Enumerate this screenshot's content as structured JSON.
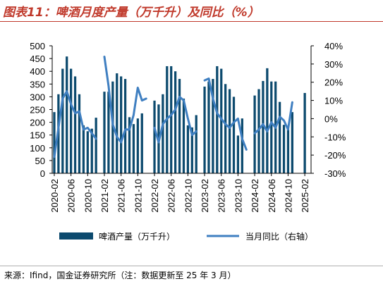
{
  "header": {
    "title": "图表11：啤酒月度产量（万千升）及同比（%）"
  },
  "footer": {
    "source": "来源：Ifind，国金证券研究所（注：数据更新至 25 年 3 月）"
  },
  "colors": {
    "bar": "#0c4a6e",
    "line": "#3f7fc1",
    "title": "#c0392b"
  },
  "chart_data": {
    "type": "bar+line",
    "x_tick_labels": [
      "2020-02",
      "2020-06",
      "2020-10",
      "2021-02",
      "2021-06",
      "2021-10",
      "2022-02",
      "2022-06",
      "2022-10",
      "2023-02",
      "2023-06",
      "2023-10",
      "2024-02",
      "2024-06",
      "2024-10",
      "2025-02"
    ],
    "x": [
      "2020-02",
      "2020-03",
      "2020-04",
      "2020-05",
      "2020-06",
      "2020-07",
      "2020-08",
      "2020-09",
      "2020-10",
      "2020-11",
      "2020-12",
      "2021-02",
      "2021-03",
      "2021-04",
      "2021-05",
      "2021-06",
      "2021-07",
      "2021-08",
      "2021-09",
      "2021-10",
      "2021-11",
      "2021-12",
      "2022-02",
      "2022-03",
      "2022-04",
      "2022-05",
      "2022-06",
      "2022-07",
      "2022-08",
      "2022-09",
      "2022-10",
      "2022-11",
      "2022-12",
      "2023-02",
      "2023-03",
      "2023-04",
      "2023-05",
      "2023-06",
      "2023-07",
      "2023-08",
      "2023-09",
      "2023-10",
      "2023-11",
      "2023-12",
      "2024-02",
      "2024-03",
      "2024-04",
      "2024-05",
      "2024-06",
      "2024-07",
      "2024-08",
      "2024-09",
      "2024-10",
      "2024-11",
      "2024-12",
      "2025-02"
    ],
    "series": [
      {
        "name": "啤酒产量（万千升）",
        "type": "bar",
        "axis": "left",
        "values": [
          240,
          310,
          410,
          458,
          410,
          380,
          310,
          188,
          165,
          175,
          218,
          320,
          320,
          360,
          392,
          380,
          370,
          220,
          193,
          215,
          235,
          null,
          285,
          270,
          310,
          420,
          420,
          400,
          370,
          293,
          188,
          180,
          228,
          340,
          360,
          370,
          420,
          410,
          350,
          330,
          300,
          148,
          215,
          null,
          305,
          330,
          362,
          412,
          360,
          360,
          280,
          190,
          172,
          240,
          null,
          315
        ]
      },
      {
        "name": "当月同比（右轴）",
        "type": "line",
        "axis": "right",
        "values": [
          -21,
          -5,
          11,
          15,
          8,
          3,
          4,
          -6,
          -5,
          -8,
          -11,
          34,
          18,
          -3,
          -10,
          -13,
          -6,
          -6,
          2,
          17,
          10,
          11,
          -5,
          -13,
          -3,
          0,
          2,
          5,
          12,
          10,
          0,
          -9,
          -7,
          21,
          22,
          11,
          3,
          0,
          -3,
          -5,
          -2,
          0,
          -11,
          -17,
          -8,
          -6,
          -3,
          -7,
          -2,
          -5,
          1,
          -1,
          -6,
          9,
          null,
          12
        ]
      }
    ],
    "y_left": {
      "ylim": [
        0,
        500
      ],
      "ticks": [
        "0",
        "50",
        "100",
        "150",
        "200",
        "250",
        "300",
        "350",
        "400",
        "450",
        "500"
      ]
    },
    "y_right": {
      "ylim": [
        -30,
        40
      ],
      "ticks": [
        "-30%",
        "-20%",
        "-10%",
        "0%",
        "10%",
        "20%",
        "30%",
        "40%"
      ]
    },
    "legend": {
      "position": "bottom",
      "items": [
        {
          "label": "啤酒产量（万千升）",
          "kind": "bar"
        },
        {
          "label": "当月同比（右轴）",
          "kind": "line"
        }
      ]
    },
    "grid": false
  }
}
